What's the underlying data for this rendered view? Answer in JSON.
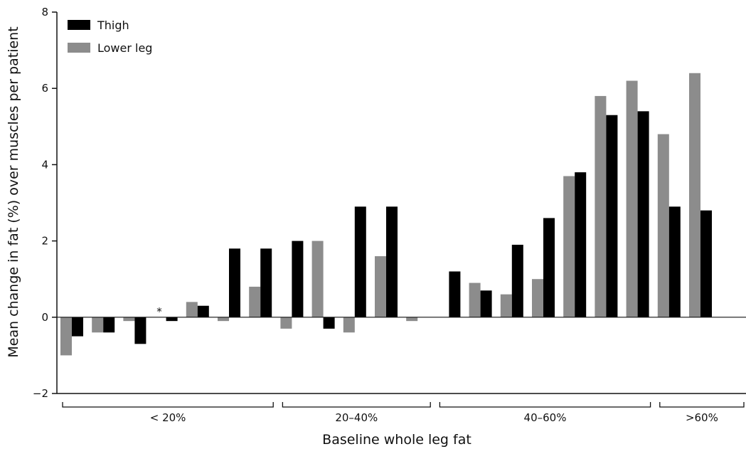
{
  "chart_data": {
    "type": "bar",
    "xlabel": "Baseline whole leg fat",
    "ylabel": "Mean change in fat (%) over muscles per patient",
    "ylim": [
      -2,
      8
    ],
    "yticks": [
      -2,
      0,
      2,
      4,
      6,
      8
    ],
    "ytick_labels": [
      "−2",
      "0",
      "2",
      "4",
      "6",
      "8"
    ],
    "legend": {
      "placement": "top-left",
      "entries": [
        {
          "name": "Thigh",
          "color": "#000000"
        },
        {
          "name": "Lower leg",
          "color": "#8c8c8c"
        }
      ]
    },
    "groups": [
      {
        "label": "< 20%",
        "patients": 7
      },
      {
        "label": "20–40%",
        "patients": 5
      },
      {
        "label": "40–60%",
        "patients": 7
      },
      {
        "label": ">60%",
        "patients": 2
      }
    ],
    "series": [
      {
        "name": "Lower leg",
        "color": "#8c8c8c",
        "values": [
          -1.0,
          -0.4,
          -0.1,
          null,
          0.4,
          -0.1,
          0.8,
          -0.3,
          2.0,
          -0.4,
          1.6,
          -0.1,
          null,
          0.9,
          0.6,
          1.0,
          3.7,
          5.8,
          6.2,
          4.8,
          6.4
        ]
      },
      {
        "name": "Thigh",
        "color": "#000000",
        "values": [
          -0.5,
          -0.4,
          -0.7,
          -0.1,
          0.3,
          1.8,
          1.8,
          2.0,
          -0.3,
          2.9,
          2.9,
          null,
          1.2,
          0.7,
          1.9,
          2.6,
          3.8,
          5.3,
          5.4,
          2.9,
          2.8
        ]
      }
    ],
    "annotations": [
      {
        "text": "*",
        "patient_index": 3
      }
    ]
  }
}
